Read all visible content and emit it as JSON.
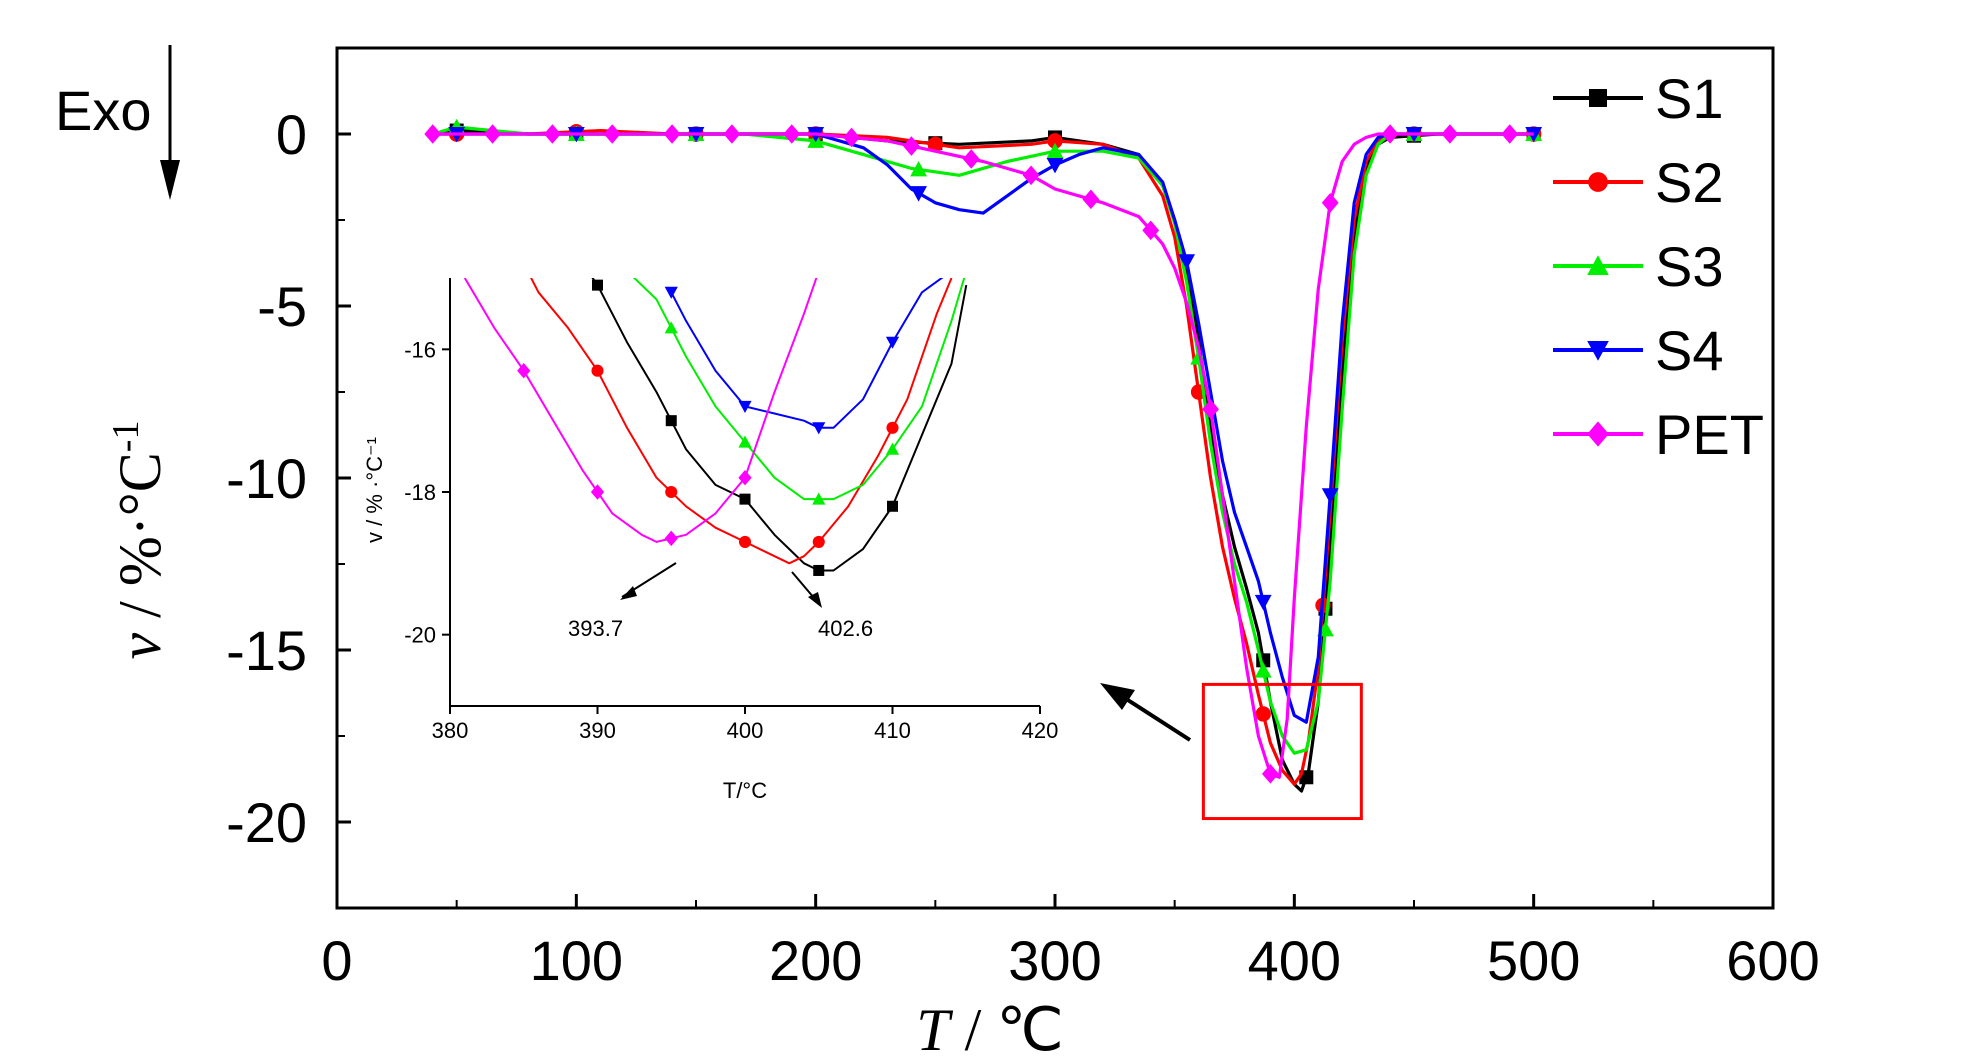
{
  "chart_data": [
    {
      "type": "line",
      "title": "",
      "xlabel": {
        "var": "T",
        "unit": " / ℃"
      },
      "ylabel": {
        "var": "v",
        "unit": " / %·°C",
        "sup": "-1"
      },
      "xlim": [
        0,
        600
      ],
      "ylim": [
        -22.5,
        2.5
      ],
      "xticks": [
        "0",
        "100",
        "200",
        "300",
        "400",
        "500",
        "600"
      ],
      "yticks": [
        "0",
        "-5",
        "-10",
        "-15",
        "-20"
      ],
      "xtick_values": [
        0,
        100,
        200,
        300,
        400,
        500,
        600
      ],
      "ytick_values": [
        0,
        -5,
        -10,
        -15,
        -20
      ],
      "grid": false,
      "legend_position": "top-right",
      "exo_label": "Exo",
      "series": [
        {
          "name": "S1",
          "color": "#000000",
          "marker": "square",
          "x": [
            40,
            50,
            80,
            110,
            140,
            170,
            200,
            230,
            260,
            290,
            300,
            320,
            335,
            345,
            350,
            355,
            360,
            365,
            370,
            375,
            380,
            385,
            390,
            395,
            400,
            403,
            406,
            410,
            415,
            420,
            425,
            430,
            435,
            440,
            460,
            480,
            500
          ],
          "values": [
            0,
            0.1,
            0,
            0,
            0,
            0,
            0,
            -0.2,
            -0.3,
            -0.2,
            -0.1,
            -0.3,
            -0.6,
            -1.5,
            -2.5,
            -4.0,
            -6.0,
            -8.5,
            -10.5,
            -12.0,
            -13.2,
            -14.5,
            -16.5,
            -18.2,
            -18.9,
            -19.1,
            -18.5,
            -16.5,
            -12.0,
            -7.0,
            -3.0,
            -1.0,
            -0.3,
            -0.1,
            0,
            0,
            0
          ],
          "marker_x": [
            50,
            100,
            150,
            200,
            250,
            300,
            387,
            405,
            413,
            450,
            500
          ]
        },
        {
          "name": "S2",
          "color": "#ff0000",
          "marker": "circle",
          "x": [
            40,
            50,
            80,
            110,
            140,
            170,
            200,
            230,
            260,
            290,
            300,
            320,
            335,
            345,
            350,
            355,
            360,
            365,
            370,
            375,
            380,
            385,
            390,
            395,
            400,
            403,
            406,
            410,
            415,
            420,
            425,
            430,
            435,
            440,
            460,
            480,
            500
          ],
          "values": [
            0,
            0,
            0,
            0.1,
            0,
            0,
            0,
            -0.1,
            -0.4,
            -0.3,
            -0.2,
            -0.3,
            -0.7,
            -1.8,
            -3.0,
            -5.0,
            -7.5,
            -10.0,
            -12.0,
            -13.5,
            -14.8,
            -16.3,
            -17.7,
            -18.5,
            -18.9,
            -18.6,
            -17.6,
            -15.5,
            -11.0,
            -6.0,
            -2.5,
            -0.8,
            -0.2,
            0,
            0,
            0,
            0
          ],
          "marker_x": [
            50,
            100,
            150,
            200,
            250,
            300,
            360,
            387,
            412,
            450,
            500
          ]
        },
        {
          "name": "S3",
          "color": "#00ee00",
          "marker": "triangle-up",
          "x": [
            40,
            50,
            80,
            110,
            140,
            170,
            200,
            220,
            240,
            260,
            280,
            300,
            320,
            335,
            345,
            350,
            355,
            360,
            365,
            370,
            375,
            380,
            385,
            390,
            395,
            400,
            405,
            410,
            415,
            420,
            425,
            430,
            435,
            440,
            460,
            480,
            500
          ],
          "values": [
            0,
            0.2,
            0,
            0,
            0,
            0,
            -0.2,
            -0.6,
            -1.0,
            -1.2,
            -0.8,
            -0.5,
            -0.5,
            -0.7,
            -1.5,
            -2.6,
            -4.3,
            -6.5,
            -9.0,
            -11.0,
            -12.5,
            -13.6,
            -15.0,
            -16.5,
            -17.5,
            -18.0,
            -17.9,
            -16.5,
            -13.0,
            -8.0,
            -3.5,
            -1.2,
            -0.3,
            0,
            0,
            0,
            0
          ],
          "marker_x": [
            50,
            100,
            150,
            200,
            243,
            300,
            360,
            387,
            413,
            450,
            500
          ]
        },
        {
          "name": "S4",
          "color": "#0000ff",
          "marker": "triangle-down",
          "x": [
            40,
            50,
            80,
            110,
            140,
            170,
            200,
            220,
            230,
            240,
            250,
            260,
            270,
            280,
            290,
            300,
            310,
            320,
            335,
            345,
            350,
            355,
            360,
            365,
            370,
            375,
            380,
            385,
            390,
            395,
            400,
            405,
            410,
            415,
            420,
            425,
            430,
            435,
            440,
            460,
            480,
            500
          ],
          "values": [
            0,
            0,
            0,
            0,
            0,
            0,
            0,
            -0.4,
            -0.9,
            -1.6,
            -2.0,
            -2.2,
            -2.3,
            -1.8,
            -1.3,
            -0.9,
            -0.6,
            -0.4,
            -0.6,
            -1.4,
            -2.5,
            -3.7,
            -5.5,
            -7.5,
            -9.5,
            -11.0,
            -12.0,
            -13.0,
            -14.5,
            -15.8,
            -16.9,
            -17.1,
            -15.2,
            -10.5,
            -5.5,
            -2.0,
            -0.6,
            -0.1,
            0,
            0,
            0,
            0
          ],
          "marker_x": [
            50,
            100,
            150,
            200,
            243,
            300,
            355,
            387,
            415,
            450,
            500
          ]
        },
        {
          "name": "PET",
          "color": "#ff00ff",
          "marker": "diamond",
          "x": [
            40,
            50,
            80,
            110,
            140,
            170,
            200,
            230,
            250,
            270,
            290,
            300,
            320,
            335,
            345,
            350,
            355,
            360,
            365,
            370,
            375,
            380,
            385,
            390,
            393.7,
            397,
            400,
            405,
            410,
            415,
            420,
            425,
            430,
            435,
            440,
            460,
            480,
            500
          ],
          "values": [
            0,
            0,
            0,
            0,
            0,
            0,
            0,
            -0.2,
            -0.5,
            -0.8,
            -1.2,
            -1.6,
            -2.0,
            -2.4,
            -3.2,
            -3.9,
            -4.9,
            -6.2,
            -8.0,
            -10.5,
            -13.0,
            -15.5,
            -17.5,
            -18.6,
            -18.7,
            -17.0,
            -13.5,
            -8.5,
            -4.5,
            -2.0,
            -0.8,
            -0.3,
            -0.1,
            0,
            0,
            0,
            0,
            0
          ],
          "marker_x": [
            40,
            65,
            90,
            115,
            140,
            165,
            190,
            215,
            240,
            265,
            290,
            315,
            340,
            365,
            390,
            415,
            440,
            465,
            490
          ]
        }
      ]
    },
    {
      "type": "line",
      "title": "",
      "xlabel": "T/°C",
      "ylabel": "v / % ·°C⁻¹",
      "xlim": [
        380,
        420
      ],
      "ylim": [
        -21,
        -15
      ],
      "xticks": [
        "380",
        "390",
        "400",
        "410",
        "420"
      ],
      "yticks": [
        "-16",
        "-18",
        "-20"
      ],
      "xtick_values": [
        380,
        390,
        400,
        410,
        420
      ],
      "ytick_values": [
        -16,
        -18,
        -20
      ],
      "grid": false,
      "annotations": [
        {
          "text": "393.7",
          "x": 393.7
        },
        {
          "text": "402.6",
          "x": 402.6
        }
      ],
      "series": [
        {
          "name": "S1",
          "color": "#000000",
          "marker": "square",
          "x": [
            389,
            390,
            392,
            394,
            396,
            398,
            400,
            402,
            403,
            404,
            405,
            406,
            408,
            410,
            412,
            414,
            415
          ],
          "values": [
            -14.8,
            -15.1,
            -15.9,
            -16.6,
            -17.4,
            -17.9,
            -18.1,
            -18.6,
            -18.8,
            -19.0,
            -19.1,
            -19.1,
            -18.8,
            -18.2,
            -17.2,
            -16.2,
            -15.1
          ],
          "marker_x": [
            390,
            395,
            400,
            405,
            410
          ]
        },
        {
          "name": "S2",
          "color": "#ff0000",
          "marker": "circle",
          "x": [
            385,
            386,
            388,
            390,
            392,
            394,
            396,
            398,
            400,
            402,
            403,
            404,
            405,
            407,
            409,
            411,
            413,
            414
          ],
          "values": [
            -14.8,
            -15.2,
            -15.7,
            -16.3,
            -17.1,
            -17.8,
            -18.2,
            -18.5,
            -18.7,
            -18.9,
            -19.0,
            -18.9,
            -18.7,
            -18.2,
            -17.5,
            -16.7,
            -15.5,
            -15.0
          ],
          "marker_x": [
            390,
            395,
            400,
            405,
            410
          ]
        },
        {
          "name": "S3",
          "color": "#00ee00",
          "marker": "triangle-up",
          "x": [
            392,
            394,
            395,
            396,
            398,
            400,
            402,
            404,
            406,
            408,
            410,
            412,
            414,
            415
          ],
          "values": [
            -14.9,
            -15.3,
            -15.7,
            -16.1,
            -16.8,
            -17.3,
            -17.8,
            -18.1,
            -18.1,
            -17.9,
            -17.4,
            -16.8,
            -15.6,
            -14.9
          ],
          "marker_x": [
            395,
            400,
            405,
            410
          ]
        },
        {
          "name": "S4",
          "color": "#0000ff",
          "marker": "triangle-down",
          "x": [
            395,
            396,
            398,
            400,
            402,
            404,
            405,
            406,
            408,
            410,
            412,
            414
          ],
          "values": [
            -15.2,
            -15.6,
            -16.3,
            -16.8,
            -16.9,
            -17.0,
            -17.1,
            -17.1,
            -16.7,
            -15.9,
            -15.2,
            -14.9
          ],
          "marker_x": [
            395,
            400,
            405,
            410
          ]
        },
        {
          "name": "PET",
          "color": "#ff00ff",
          "marker": "diamond",
          "x": [
            381,
            383,
            385,
            387,
            389,
            391,
            393,
            394,
            396,
            398,
            400,
            402,
            404,
            405
          ],
          "values": [
            -15.0,
            -15.7,
            -16.3,
            -17.0,
            -17.7,
            -18.3,
            -18.6,
            -18.7,
            -18.6,
            -18.3,
            -17.8,
            -16.6,
            -15.5,
            -14.9
          ],
          "marker_x": [
            385,
            390,
            395,
            400
          ]
        }
      ]
    }
  ]
}
